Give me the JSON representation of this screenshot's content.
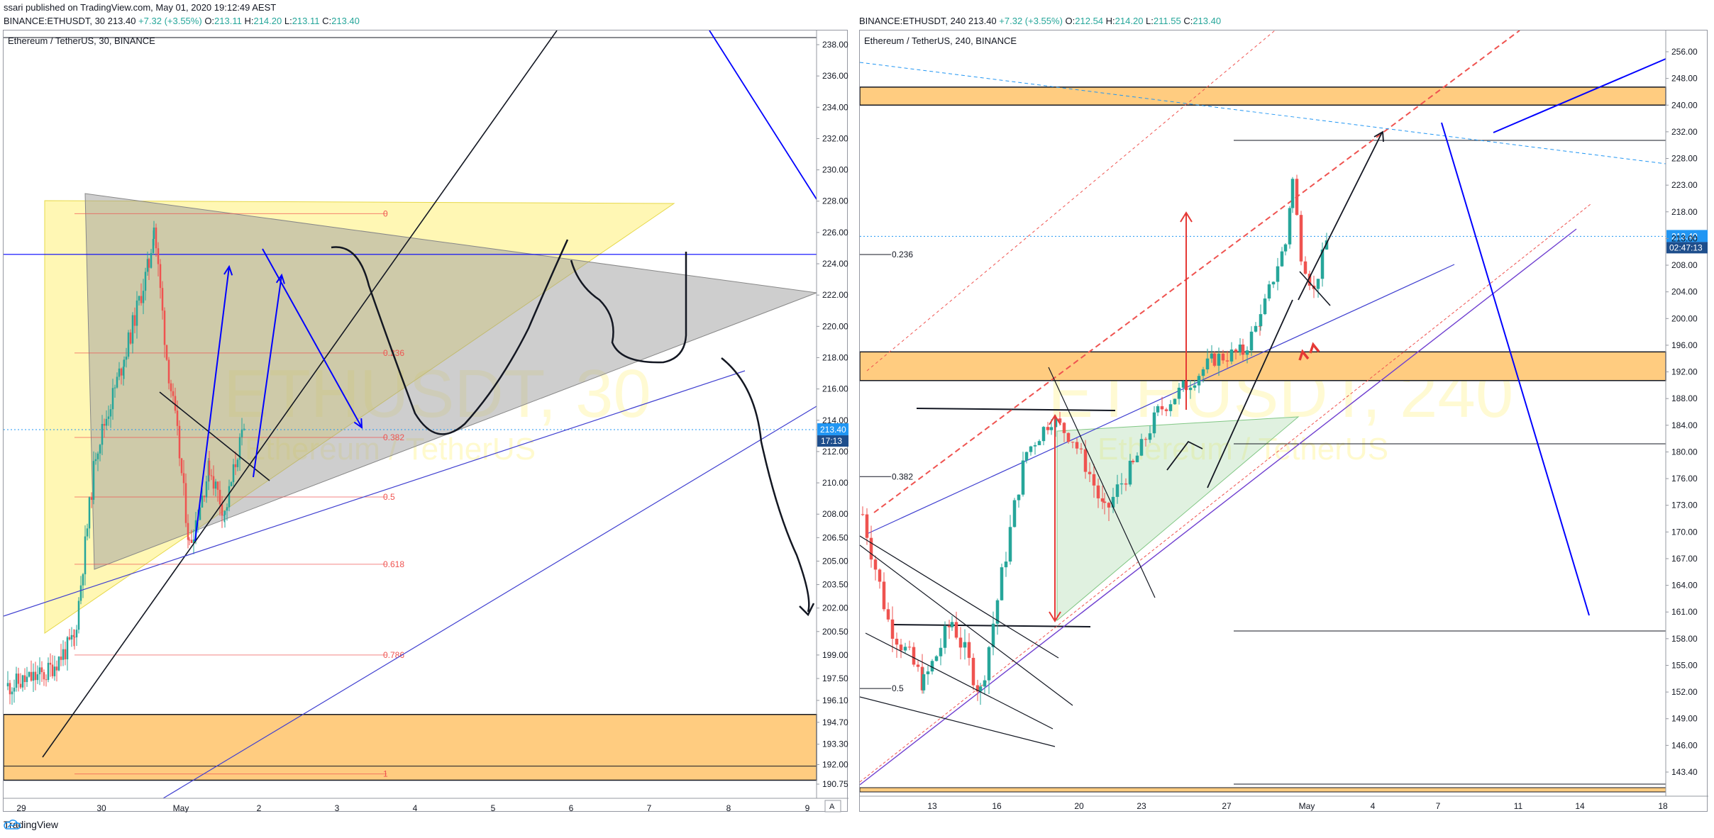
{
  "publish_line": "ssari published on TradingView.com, May 01, 2020 19:12:49 AEST",
  "brand": "TradingView",
  "colors": {
    "up": "#26a69a",
    "down": "#ef5350",
    "zone": "#ffcc80",
    "line_blue": "#0000ff",
    "price_tag": "#2196f3",
    "fib": "#ef5350"
  },
  "chart_data": [
    {
      "type": "candlestick",
      "symbol": "BINANCE:ETHUSDT",
      "interval": "30",
      "header": {
        "symbol": "BINANCE:ETHUSDT, 30",
        "price": "213.40",
        "change": "+7.32 (+3.55%)",
        "O": "213.11",
        "H": "214.20",
        "L": "213.11",
        "C": "213.40"
      },
      "title": "Ethereum / TetherUS, 30, BINANCE",
      "watermark": "ETHUSDT, 30",
      "watermark_sub": "Ethereum / TetherUS",
      "y_ticks": [
        "238.00",
        "236.00",
        "234.00",
        "232.00",
        "230.00",
        "228.00",
        "226.00",
        "224.00",
        "222.00",
        "220.00",
        "218.00",
        "216.00",
        "214.00",
        "212.00",
        "210.00",
        "208.00",
        "206.50",
        "205.00",
        "203.50",
        "202.00",
        "200.50",
        "199.00",
        "197.50",
        "196.10",
        "194.70",
        "193.30",
        "192.00",
        "190.75"
      ],
      "x_ticks": [
        "29",
        "30",
        "May",
        "2",
        "3",
        "4",
        "5",
        "6",
        "7",
        "8",
        "9"
      ],
      "last_price": "213.40",
      "countdown": "17:13",
      "fib_levels": [
        {
          "label": "0",
          "price": 227.2
        },
        {
          "label": "0.236",
          "price": 218.3
        },
        {
          "label": "0.382",
          "price": 212.9
        },
        {
          "label": "0.5",
          "price": 209.1
        },
        {
          "label": "0.618",
          "price": 204.8
        },
        {
          "label": "0.786",
          "price": 199.0
        },
        {
          "label": "1",
          "price": 191.4
        }
      ],
      "support_zone": [
        191.0,
        195.2
      ],
      "horizontal_line": 224.6,
      "scale_button": "A"
    },
    {
      "type": "candlestick",
      "symbol": "BINANCE:ETHUSDT",
      "interval": "240",
      "header": {
        "symbol": "BINANCE:ETHUSDT, 240",
        "price": "213.40",
        "change": "+7.32 (+3.55%)",
        "O": "212.54",
        "H": "214.20",
        "L": "211.55",
        "C": "213.40"
      },
      "title": "Ethereum / TetherUS, 240, BINANCE",
      "watermark": "ETHUSDT, 240",
      "watermark_sub": "Ethereum / TetherUS",
      "y_ticks": [
        "256.00",
        "248.00",
        "240.00",
        "232.00",
        "228.00",
        "223.00",
        "218.00",
        "213.00",
        "208.00",
        "204.00",
        "200.00",
        "196.00",
        "192.00",
        "188.00",
        "184.00",
        "180.00",
        "176.00",
        "173.00",
        "170.00",
        "167.00",
        "164.00",
        "161.00",
        "158.00",
        "155.00",
        "152.00",
        "149.00",
        "146.00",
        "143.40"
      ],
      "x_ticks": [
        "13",
        "16",
        "20",
        "23",
        "27",
        "May",
        "4",
        "7",
        "11",
        "14",
        "18"
      ],
      "last_price": "213.40",
      "countdown": "02:47:13",
      "fib_labels": [
        {
          "label": "0.236",
          "price": 210.0
        },
        {
          "label": "0.382",
          "price": 176.3
        },
        {
          "label": "0.5",
          "price": 152.4
        }
      ],
      "zones": [
        [
          240.0,
          245.4
        ],
        [
          190.7,
          195.0
        ]
      ]
    }
  ]
}
